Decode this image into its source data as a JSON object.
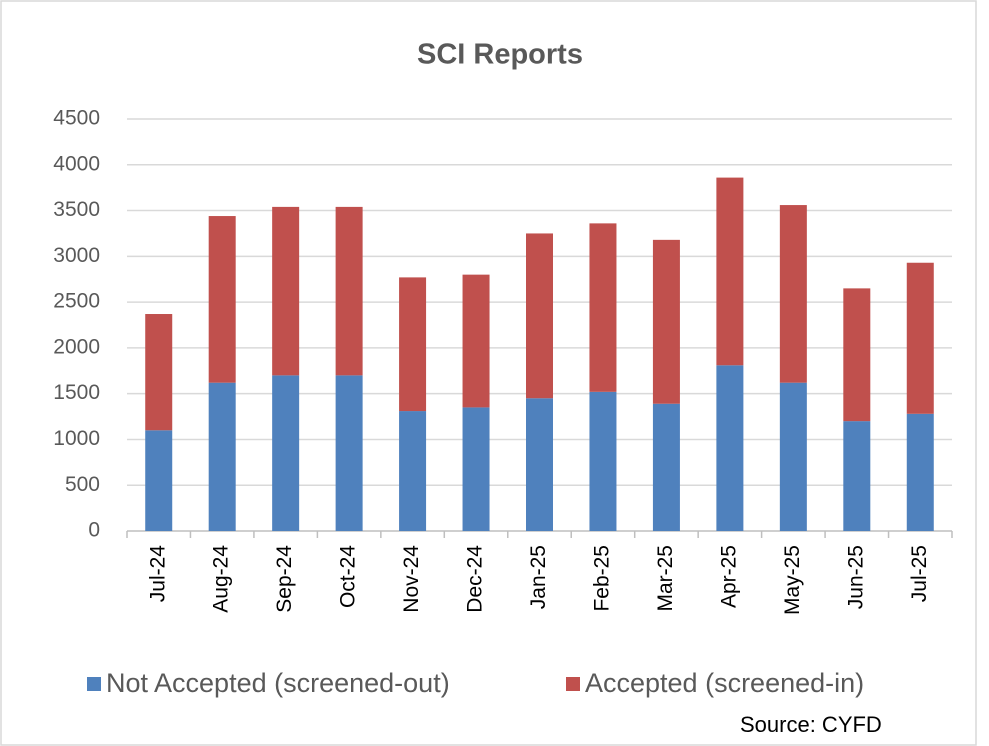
{
  "chart_data": {
    "type": "stacked_bar",
    "title": "SCI Reports",
    "categories": [
      "Jul-24",
      "Aug-24",
      "Sep-24",
      "Oct-24",
      "Nov-24",
      "Dec-24",
      "Jan-25",
      "Feb-25",
      "Mar-25",
      "Apr-25",
      "May-25",
      "Jun-25",
      "Jul-25"
    ],
    "series": [
      {
        "name": "Not Accepted (screened-out)",
        "color": "#4f81bd",
        "values": [
          1100,
          1620,
          1700,
          1700,
          1310,
          1350,
          1450,
          1520,
          1390,
          1810,
          1620,
          1200,
          1280
        ]
      },
      {
        "name": "Accepted (screened-in)",
        "color": "#c0504d",
        "values": [
          1270,
          1820,
          1840,
          1840,
          1460,
          1450,
          1800,
          1840,
          1790,
          2050,
          1940,
          1450,
          1650
        ]
      }
    ],
    "ylim": [
      0,
      4500
    ],
    "yticks": [
      0,
      500,
      1000,
      1500,
      2000,
      2500,
      3000,
      3500,
      4000,
      4500
    ],
    "grid": true,
    "legend": "bottom",
    "source": "Source: CYFD"
  }
}
